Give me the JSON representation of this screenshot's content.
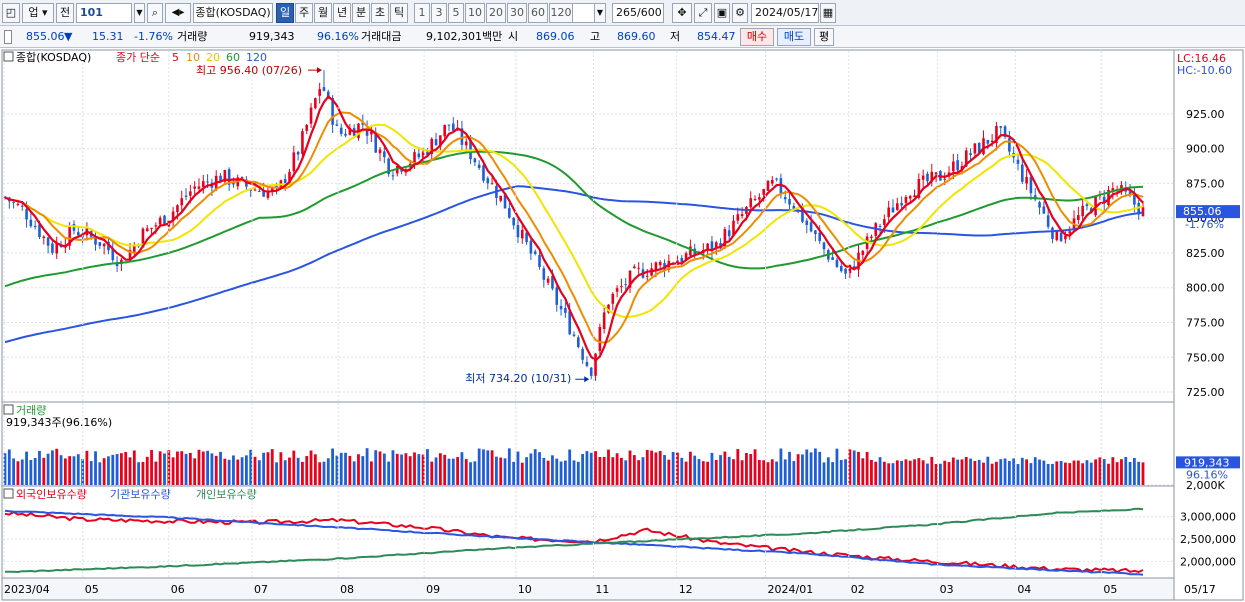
{
  "toolbar": {
    "market": "업",
    "prev_label": "전",
    "code": "101",
    "index_name": "종합(KOSDAQ)",
    "periods": [
      "일",
      "주",
      "월",
      "년",
      "분",
      "초",
      "틱"
    ],
    "active_period": "일",
    "intervals": [
      "1",
      "3",
      "5",
      "10",
      "20",
      "30",
      "60",
      "120"
    ],
    "count": "265/600",
    "date": "2024/05/17"
  },
  "quote": {
    "price": "855.06",
    "arrow": "▼",
    "change": "15.31",
    "change_pct": "-1.76%",
    "volume_label": "거래량",
    "volume": "919,343",
    "vol_ratio": "96.16%",
    "amount_label": "거래대금",
    "amount": "9,102,301백만",
    "open_label": "시",
    "open": "869.06",
    "high_label": "고",
    "high": "869.60",
    "low_label": "저",
    "low": "854.47",
    "buy_label": "매수",
    "sell_label": "매도",
    "eval_label": "평"
  },
  "colors": {
    "up": "#e8001c",
    "down": "#1f5fd6",
    "ma5": "#e8001c",
    "ma10": "#f08c00",
    "ma20": "#f0e600",
    "ma60": "#1e9a2e",
    "ma120": "#2a55e0",
    "foreign": "#e8001c",
    "institution": "#2a55e0",
    "individual": "#2e8b57"
  },
  "chart_data": [
    {
      "type": "candlestick",
      "legend": {
        "symbol": "종합(KOSDAQ)",
        "ma_label": "종가 단순",
        "ma_periods": [
          "5",
          "10",
          "20",
          "60",
          "120"
        ]
      },
      "corner_labels": [
        "LC:16.46",
        "HC:-10.60"
      ],
      "x_ticks": [
        "2023/04",
        "05",
        "06",
        "07",
        "08",
        "09",
        "10",
        "11",
        "12",
        "2024/01",
        "02",
        "03",
        "04",
        "05",
        "05/17"
      ],
      "y_ticks": [
        "925.00",
        "900.00",
        "875.00",
        "850.00",
        "825.00",
        "800.00",
        "775.00",
        "750.00",
        "725.00"
      ],
      "ylim": [
        720,
        968
      ],
      "last_price": {
        "value": "855.06",
        "change": "-1.76%"
      },
      "annotations": [
        {
          "text": "최고 956.40 (07/26)",
          "value": 956.4
        },
        {
          "text": "최저 734.20 (10/31)",
          "value": 734.2
        }
      ],
      "close_path": [
        {
          "date": "2023-04-03",
          "close": 865
        },
        {
          "date": "2023-04-10",
          "close": 855
        },
        {
          "date": "2023-04-20",
          "close": 828
        },
        {
          "date": "2023-04-28",
          "close": 842
        },
        {
          "date": "2023-05-08",
          "close": 832
        },
        {
          "date": "2023-05-15",
          "close": 818
        },
        {
          "date": "2023-05-22",
          "close": 838
        },
        {
          "date": "2023-06-01",
          "close": 852
        },
        {
          "date": "2023-06-10",
          "close": 872
        },
        {
          "date": "2023-06-20",
          "close": 880
        },
        {
          "date": "2023-06-30",
          "close": 872
        },
        {
          "date": "2023-07-10",
          "close": 868
        },
        {
          "date": "2023-07-18",
          "close": 900
        },
        {
          "date": "2023-07-26",
          "close": 948
        },
        {
          "date": "2023-08-01",
          "close": 910
        },
        {
          "date": "2023-08-10",
          "close": 918
        },
        {
          "date": "2023-08-20",
          "close": 885
        },
        {
          "date": "2023-08-31",
          "close": 895
        },
        {
          "date": "2023-09-10",
          "close": 918
        },
        {
          "date": "2023-09-20",
          "close": 890
        },
        {
          "date": "2023-09-30",
          "close": 860
        },
        {
          "date": "2023-10-08",
          "close": 830
        },
        {
          "date": "2023-10-16",
          "close": 800
        },
        {
          "date": "2023-10-24",
          "close": 770
        },
        {
          "date": "2023-10-31",
          "close": 740
        },
        {
          "date": "2023-11-06",
          "close": 790
        },
        {
          "date": "2023-11-16",
          "close": 810
        },
        {
          "date": "2023-11-30",
          "close": 820
        },
        {
          "date": "2023-12-15",
          "close": 830
        },
        {
          "date": "2023-12-28",
          "close": 860
        },
        {
          "date": "2024-01-05",
          "close": 875
        },
        {
          "date": "2024-01-12",
          "close": 860
        },
        {
          "date": "2024-01-22",
          "close": 830
        },
        {
          "date": "2024-01-31",
          "close": 808
        },
        {
          "date": "2024-02-10",
          "close": 840
        },
        {
          "date": "2024-02-22",
          "close": 870
        },
        {
          "date": "2024-03-05",
          "close": 880
        },
        {
          "date": "2024-03-15",
          "close": 895
        },
        {
          "date": "2024-03-26",
          "close": 912
        },
        {
          "date": "2024-04-05",
          "close": 875
        },
        {
          "date": "2024-04-16",
          "close": 835
        },
        {
          "date": "2024-04-26",
          "close": 855
        },
        {
          "date": "2024-05-07",
          "close": 872
        },
        {
          "date": "2024-05-17",
          "close": 855
        }
      ]
    },
    {
      "type": "bar",
      "title": "거래량",
      "value_label": "919,343주(96.16%)",
      "y_ticks": [
        "2,000K"
      ],
      "ylim": [
        0,
        2600
      ],
      "last_value": {
        "value": "919,343",
        "ratio": "96.16%"
      },
      "series_unit": "K"
    },
    {
      "type": "line",
      "legend": [
        "외국인보유수량",
        "기관보유수량",
        "개인보유수량"
      ],
      "y_ticks": [
        "3,000,000",
        "2,500,000",
        "2,000,000"
      ],
      "ylim": [
        1650000,
        3350000
      ],
      "series": [
        {
          "name": "외국인보유수량",
          "points": [
            {
              "date": "2023-04-03",
              "value": 3080000
            },
            {
              "date": "2023-05-01",
              "value": 2940000
            },
            {
              "date": "2023-06-01",
              "value": 2900000
            },
            {
              "date": "2023-07-01",
              "value": 2870000
            },
            {
              "date": "2023-08-01",
              "value": 2920000
            },
            {
              "date": "2023-09-01",
              "value": 2760000
            },
            {
              "date": "2023-10-01",
              "value": 2520000
            },
            {
              "date": "2023-11-01",
              "value": 2450000
            },
            {
              "date": "2023-11-20",
              "value": 2700000
            },
            {
              "date": "2023-12-15",
              "value": 2420000
            },
            {
              "date": "2024-01-15",
              "value": 2220000
            },
            {
              "date": "2024-02-15",
              "value": 2060000
            },
            {
              "date": "2024-03-15",
              "value": 1950000
            },
            {
              "date": "2024-04-15",
              "value": 1830000
            },
            {
              "date": "2024-05-17",
              "value": 1780000
            }
          ]
        },
        {
          "name": "기관보유수량",
          "points": [
            {
              "date": "2023-04-03",
              "value": 3130000
            },
            {
              "date": "2023-06-01",
              "value": 2980000
            },
            {
              "date": "2023-08-01",
              "value": 2760000
            },
            {
              "date": "2023-10-01",
              "value": 2530000
            },
            {
              "date": "2023-12-01",
              "value": 2330000
            },
            {
              "date": "2024-01-15",
              "value": 2180000
            },
            {
              "date": "2024-03-01",
              "value": 1940000
            },
            {
              "date": "2024-04-15",
              "value": 1800000
            },
            {
              "date": "2024-05-17",
              "value": 1710000
            }
          ]
        },
        {
          "name": "개인보유수량",
          "points": [
            {
              "date": "2023-04-03",
              "value": 1760000
            },
            {
              "date": "2023-06-01",
              "value": 1890000
            },
            {
              "date": "2023-08-01",
              "value": 2060000
            },
            {
              "date": "2023-10-01",
              "value": 2300000
            },
            {
              "date": "2023-12-01",
              "value": 2490000
            },
            {
              "date": "2024-01-15",
              "value": 2620000
            },
            {
              "date": "2024-03-01",
              "value": 2820000
            },
            {
              "date": "2024-04-15",
              "value": 3080000
            },
            {
              "date": "2024-05-17",
              "value": 3170000
            }
          ]
        }
      ]
    }
  ]
}
